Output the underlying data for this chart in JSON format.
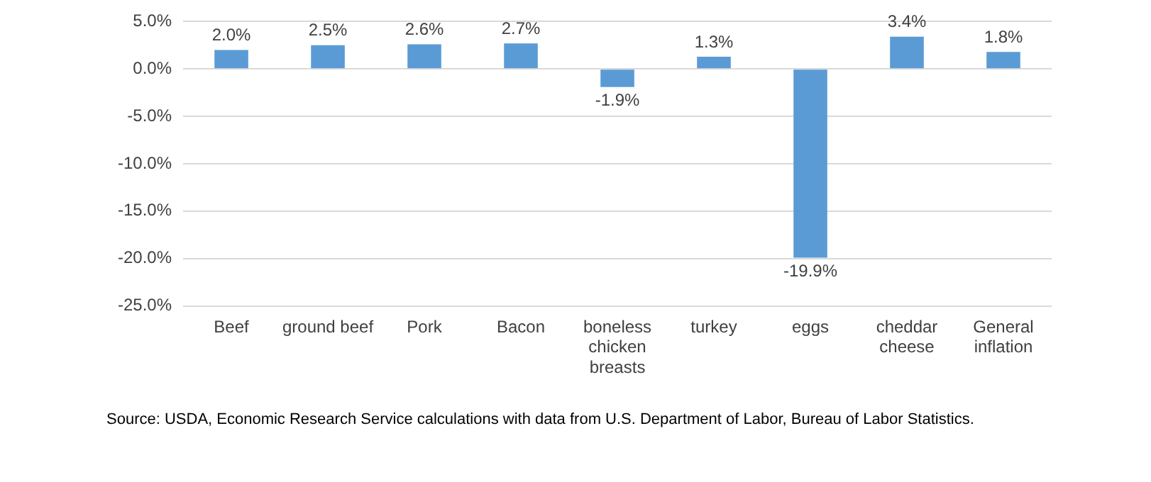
{
  "chart_data": {
    "type": "bar",
    "categories": [
      "Beef",
      "ground beef",
      "Pork",
      "Bacon",
      "boneless chicken breasts",
      "turkey",
      "eggs",
      "cheddar cheese",
      "General inflation"
    ],
    "values": [
      2.0,
      2.5,
      2.6,
      2.7,
      -1.9,
      1.3,
      -19.9,
      3.4,
      1.8
    ],
    "value_labels": [
      "2.0%",
      "2.5%",
      "2.6%",
      "2.7%",
      "-1.9%",
      "1.3%",
      "-19.9%",
      "3.4%",
      "1.8%"
    ],
    "color": "#5b9bd5",
    "ylim": [
      -25,
      5
    ],
    "yticks": [
      {
        "value": 5,
        "label": "5.0%"
      },
      {
        "value": 0,
        "label": "0.0%"
      },
      {
        "value": -5,
        "label": "-5.0%"
      },
      {
        "value": -10,
        "label": "-10.0%"
      },
      {
        "value": -15,
        "label": "-15.0%"
      },
      {
        "value": -20,
        "label": "-20.0%"
      },
      {
        "value": -25,
        "label": "-25.0%"
      }
    ],
    "grid": "y",
    "annotations": [
      "Source: USDA, Economic Research Service calculations with data from U.S. Department of Labor, Bureau of Labor Statistics."
    ]
  }
}
